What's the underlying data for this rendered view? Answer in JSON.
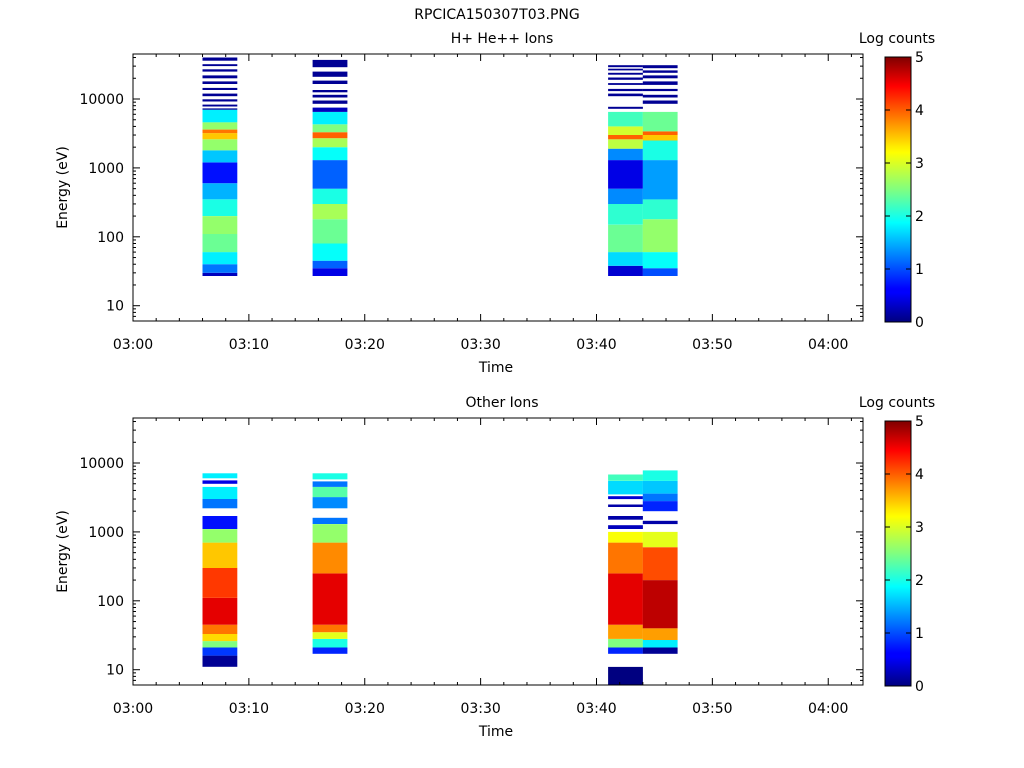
{
  "figure_title": "RPCICA150307T03.PNG",
  "chart_data": [
    {
      "type": "heatmap",
      "title": "H+ He++ Ions",
      "xlabel": "Time",
      "ylabel": "Energy (eV)",
      "yscale": "log",
      "xlim": [
        "03:00",
        "04:03"
      ],
      "ylim": [
        6,
        45000
      ],
      "x_ticks": [
        "03:00",
        "03:10",
        "03:20",
        "03:30",
        "03:40",
        "03:50",
        "04:00"
      ],
      "y_ticks": [
        "10",
        "100",
        "1000",
        "10000"
      ],
      "colorbar": {
        "label": "Log counts",
        "range": [
          0,
          5
        ],
        "ticks": [
          "0",
          "1",
          "2",
          "3",
          "4",
          "5"
        ]
      },
      "columns": [
        {
          "t_start": "03:06",
          "t_end": "03:09",
          "bands": [
            {
              "e_min": 27,
              "e_max": 30,
              "value": 0.3
            },
            {
              "e_min": 30,
              "e_max": 40,
              "value": 1.2
            },
            {
              "e_min": 40,
              "e_max": 60,
              "value": 1.8
            },
            {
              "e_min": 60,
              "e_max": 110,
              "value": 2.4
            },
            {
              "e_min": 110,
              "e_max": 200,
              "value": 2.6
            },
            {
              "e_min": 200,
              "e_max": 350,
              "value": 2.0
            },
            {
              "e_min": 350,
              "e_max": 600,
              "value": 1.5
            },
            {
              "e_min": 600,
              "e_max": 1200,
              "value": 0.7
            },
            {
              "e_min": 1200,
              "e_max": 1800,
              "value": 1.6
            },
            {
              "e_min": 1800,
              "e_max": 2600,
              "value": 2.6
            },
            {
              "e_min": 2600,
              "e_max": 3200,
              "value": 3.4
            },
            {
              "e_min": 3200,
              "e_max": 3600,
              "value": 3.8
            },
            {
              "e_min": 3600,
              "e_max": 4600,
              "value": 2.6
            },
            {
              "e_min": 4600,
              "e_max": 7000,
              "value": 1.8
            },
            {
              "e_min": 7000,
              "e_max": 7300,
              "value": 0.1
            },
            {
              "e_min": 7800,
              "e_max": 8300,
              "value": 0.1
            },
            {
              "e_min": 9200,
              "e_max": 9900,
              "value": 0.1
            },
            {
              "e_min": 11000,
              "e_max": 12000,
              "value": 0.1
            },
            {
              "e_min": 13500,
              "e_max": 14500,
              "value": 0.1
            },
            {
              "e_min": 16500,
              "e_max": 18000,
              "value": 0.1
            },
            {
              "e_min": 20000,
              "e_max": 22000,
              "value": 0.1
            },
            {
              "e_min": 25000,
              "e_max": 27000,
              "value": 0.1
            },
            {
              "e_min": 30000,
              "e_max": 32000,
              "value": 0.1
            },
            {
              "e_min": 36000,
              "e_max": 40000,
              "value": 0.1
            }
          ]
        },
        {
          "t_start": "03:15.5",
          "t_end": "03:18.5",
          "bands": [
            {
              "e_min": 27,
              "e_max": 35,
              "value": 0.5
            },
            {
              "e_min": 35,
              "e_max": 45,
              "value": 1.1
            },
            {
              "e_min": 45,
              "e_max": 80,
              "value": 1.9
            },
            {
              "e_min": 80,
              "e_max": 180,
              "value": 2.4
            },
            {
              "e_min": 180,
              "e_max": 300,
              "value": 2.7
            },
            {
              "e_min": 300,
              "e_max": 500,
              "value": 2.0
            },
            {
              "e_min": 500,
              "e_max": 1300,
              "value": 1.1
            },
            {
              "e_min": 1300,
              "e_max": 2000,
              "value": 1.9
            },
            {
              "e_min": 2000,
              "e_max": 2700,
              "value": 2.7
            },
            {
              "e_min": 2700,
              "e_max": 3300,
              "value": 3.9
            },
            {
              "e_min": 3300,
              "e_max": 4300,
              "value": 2.5
            },
            {
              "e_min": 4300,
              "e_max": 6500,
              "value": 1.8
            },
            {
              "e_min": 6500,
              "e_max": 7500,
              "value": 0.3
            },
            {
              "e_min": 8500,
              "e_max": 9500,
              "value": 0.1
            },
            {
              "e_min": 10500,
              "e_max": 11500,
              "value": 0.1
            },
            {
              "e_min": 12500,
              "e_max": 13500,
              "value": 0.1
            },
            {
              "e_min": 16500,
              "e_max": 18500,
              "value": 0.1
            },
            {
              "e_min": 21000,
              "e_max": 25000,
              "value": 0.1
            },
            {
              "e_min": 29000,
              "e_max": 37000,
              "value": 0.1
            }
          ]
        },
        {
          "t_start": "03:41",
          "t_end": "03:44",
          "bands": [
            {
              "e_min": 27,
              "e_max": 38,
              "value": 0.4
            },
            {
              "e_min": 38,
              "e_max": 60,
              "value": 1.7
            },
            {
              "e_min": 60,
              "e_max": 150,
              "value": 2.4
            },
            {
              "e_min": 150,
              "e_max": 300,
              "value": 2.1
            },
            {
              "e_min": 300,
              "e_max": 500,
              "value": 1.3
            },
            {
              "e_min": 500,
              "e_max": 1300,
              "value": 0.5
            },
            {
              "e_min": 1300,
              "e_max": 1900,
              "value": 1.3
            },
            {
              "e_min": 1900,
              "e_max": 2600,
              "value": 2.8
            },
            {
              "e_min": 2600,
              "e_max": 3000,
              "value": 3.9
            },
            {
              "e_min": 3000,
              "e_max": 4000,
              "value": 2.9
            },
            {
              "e_min": 4000,
              "e_max": 6500,
              "value": 2.2
            },
            {
              "e_min": 7200,
              "e_max": 7700,
              "value": 0.1
            },
            {
              "e_min": 11000,
              "e_max": 12000,
              "value": 0.1
            },
            {
              "e_min": 13000,
              "e_max": 14000,
              "value": 0.1
            },
            {
              "e_min": 16000,
              "e_max": 17000,
              "value": 0.1
            },
            {
              "e_min": 19000,
              "e_max": 20500,
              "value": 0.1
            },
            {
              "e_min": 22500,
              "e_max": 24000,
              "value": 0.1
            },
            {
              "e_min": 26000,
              "e_max": 27500,
              "value": 0.1
            },
            {
              "e_min": 29000,
              "e_max": 31000,
              "value": 0.1
            }
          ]
        },
        {
          "t_start": "03:44",
          "t_end": "03:47",
          "bands": [
            {
              "e_min": 27,
              "e_max": 35,
              "value": 1.0
            },
            {
              "e_min": 35,
              "e_max": 60,
              "value": 1.9
            },
            {
              "e_min": 60,
              "e_max": 180,
              "value": 2.6
            },
            {
              "e_min": 180,
              "e_max": 350,
              "value": 2.1
            },
            {
              "e_min": 350,
              "e_max": 1300,
              "value": 1.4
            },
            {
              "e_min": 1300,
              "e_max": 2500,
              "value": 2.0
            },
            {
              "e_min": 2500,
              "e_max": 3000,
              "value": 3.4
            },
            {
              "e_min": 3000,
              "e_max": 3400,
              "value": 3.9
            },
            {
              "e_min": 3400,
              "e_max": 6500,
              "value": 2.4
            },
            {
              "e_min": 8500,
              "e_max": 9500,
              "value": 0.1
            },
            {
              "e_min": 10500,
              "e_max": 11500,
              "value": 0.1
            },
            {
              "e_min": 13000,
              "e_max": 14000,
              "value": 0.1
            },
            {
              "e_min": 16000,
              "e_max": 18000,
              "value": 0.1
            },
            {
              "e_min": 20000,
              "e_max": 22000,
              "value": 0.1
            },
            {
              "e_min": 24000,
              "e_max": 26000,
              "value": 0.1
            },
            {
              "e_min": 28000,
              "e_max": 31000,
              "value": 0.1
            }
          ]
        }
      ]
    },
    {
      "type": "heatmap",
      "title": "Other Ions",
      "xlabel": "Time",
      "ylabel": "Energy (eV)",
      "yscale": "log",
      "xlim": [
        "03:00",
        "04:03"
      ],
      "ylim": [
        6,
        45000
      ],
      "x_ticks": [
        "03:00",
        "03:10",
        "03:20",
        "03:30",
        "03:40",
        "03:50",
        "04:00"
      ],
      "y_ticks": [
        "10",
        "100",
        "1000",
        "10000"
      ],
      "colorbar": {
        "label": "Log counts",
        "range": [
          0,
          5
        ],
        "ticks": [
          "0",
          "1",
          "2",
          "3",
          "4",
          "5"
        ]
      },
      "columns": [
        {
          "t_start": "03:06",
          "t_end": "03:09",
          "bands": [
            {
              "e_min": 11,
              "e_max": 16,
              "value": 0.1
            },
            {
              "e_min": 16,
              "e_max": 21,
              "value": 0.9
            },
            {
              "e_min": 21,
              "e_max": 26,
              "value": 2.5
            },
            {
              "e_min": 26,
              "e_max": 33,
              "value": 3.3
            },
            {
              "e_min": 33,
              "e_max": 45,
              "value": 3.8
            },
            {
              "e_min": 45,
              "e_max": 110,
              "value": 4.5
            },
            {
              "e_min": 110,
              "e_max": 300,
              "value": 4.1
            },
            {
              "e_min": 300,
              "e_max": 700,
              "value": 3.4
            },
            {
              "e_min": 700,
              "e_max": 1100,
              "value": 2.6
            },
            {
              "e_min": 1100,
              "e_max": 1700,
              "value": 0.7
            },
            {
              "e_min": 2200,
              "e_max": 3000,
              "value": 1.2
            },
            {
              "e_min": 3000,
              "e_max": 4500,
              "value": 1.8
            },
            {
              "e_min": 5000,
              "e_max": 5600,
              "value": 0.5
            },
            {
              "e_min": 6000,
              "e_max": 7100,
              "value": 1.8
            }
          ]
        },
        {
          "t_start": "03:15.5",
          "t_end": "03:18.5",
          "bands": [
            {
              "e_min": 17,
              "e_max": 21,
              "value": 0.8
            },
            {
              "e_min": 21,
              "e_max": 28,
              "value": 2.0
            },
            {
              "e_min": 28,
              "e_max": 35,
              "value": 3.0
            },
            {
              "e_min": 35,
              "e_max": 45,
              "value": 3.8
            },
            {
              "e_min": 45,
              "e_max": 250,
              "value": 4.5
            },
            {
              "e_min": 250,
              "e_max": 700,
              "value": 3.7
            },
            {
              "e_min": 700,
              "e_max": 1300,
              "value": 2.6
            },
            {
              "e_min": 1300,
              "e_max": 1600,
              "value": 1.2
            },
            {
              "e_min": 2200,
              "e_max": 3200,
              "value": 1.3
            },
            {
              "e_min": 3200,
              "e_max": 4500,
              "value": 2.3
            },
            {
              "e_min": 4500,
              "e_max": 5400,
              "value": 1.2
            },
            {
              "e_min": 5800,
              "e_max": 7100,
              "value": 2.0
            }
          ]
        },
        {
          "t_start": "03:41",
          "t_end": "03:44",
          "bands": [
            {
              "e_min": 6,
              "e_max": 11,
              "value": 0.0
            },
            {
              "e_min": 17,
              "e_max": 21,
              "value": 0.8
            },
            {
              "e_min": 21,
              "e_max": 28,
              "value": 2.5
            },
            {
              "e_min": 28,
              "e_max": 45,
              "value": 3.6
            },
            {
              "e_min": 45,
              "e_max": 250,
              "value": 4.5
            },
            {
              "e_min": 250,
              "e_max": 700,
              "value": 3.8
            },
            {
              "e_min": 700,
              "e_max": 1000,
              "value": 3.1
            },
            {
              "e_min": 1100,
              "e_max": 1250,
              "value": 0.3
            },
            {
              "e_min": 1500,
              "e_max": 1700,
              "value": 0.2
            },
            {
              "e_min": 2300,
              "e_max": 2500,
              "value": 0.2
            },
            {
              "e_min": 3000,
              "e_max": 3300,
              "value": 0.4
            },
            {
              "e_min": 3500,
              "e_max": 5500,
              "value": 1.7
            },
            {
              "e_min": 5500,
              "e_max": 6800,
              "value": 2.2
            }
          ]
        },
        {
          "t_start": "03:44",
          "t_end": "03:47",
          "bands": [
            {
              "e_min": 17,
              "e_max": 21,
              "value": 0.1
            },
            {
              "e_min": 21,
              "e_max": 27,
              "value": 1.8
            },
            {
              "e_min": 27,
              "e_max": 40,
              "value": 3.6
            },
            {
              "e_min": 40,
              "e_max": 200,
              "value": 4.7
            },
            {
              "e_min": 200,
              "e_max": 600,
              "value": 4.0
            },
            {
              "e_min": 600,
              "e_max": 1000,
              "value": 3.0
            },
            {
              "e_min": 1300,
              "e_max": 1450,
              "value": 0.2
            },
            {
              "e_min": 2000,
              "e_max": 2800,
              "value": 0.8
            },
            {
              "e_min": 2800,
              "e_max": 3600,
              "value": 1.2
            },
            {
              "e_min": 3600,
              "e_max": 5500,
              "value": 1.6
            },
            {
              "e_min": 5500,
              "e_max": 7800,
              "value": 2.0
            }
          ]
        }
      ]
    }
  ]
}
